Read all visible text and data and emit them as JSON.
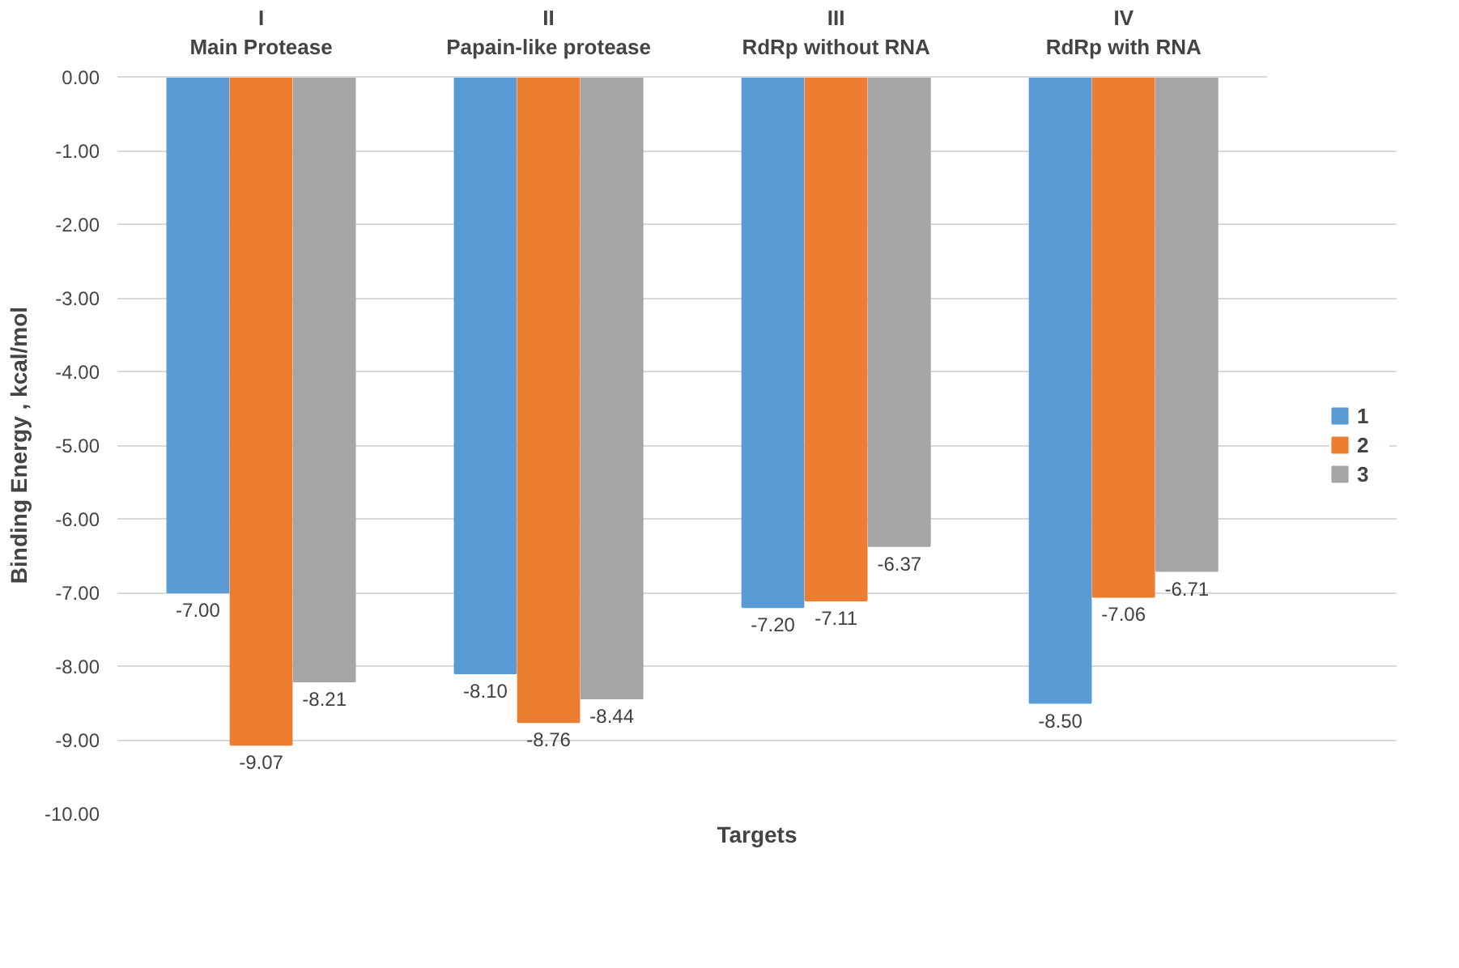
{
  "chart_data": {
    "type": "bar",
    "xlabel": "Targets",
    "ylabel": "Binding Energy , kcal/mol",
    "categories": [
      "I\nMain Protease",
      "II\nPapain-like protease",
      "III\nRdRp without RNA",
      "IV\nRdRp with RNA"
    ],
    "series": [
      {
        "name": "1",
        "color": "#5b9bd5",
        "values": [
          -7.0,
          -8.1,
          -7.2,
          -8.5
        ],
        "value_labels": [
          "-7.00",
          "-8.10",
          "-7.20",
          "-8.50"
        ]
      },
      {
        "name": "2",
        "color": "#ed7d31",
        "values": [
          -9.07,
          -8.76,
          -7.11,
          -7.06
        ],
        "value_labels": [
          "-9.07",
          "-8.76",
          "-7.11",
          "-7.06"
        ]
      },
      {
        "name": "3",
        "color": "#a5a5a5",
        "values": [
          -8.21,
          -8.44,
          -6.37,
          -6.71
        ],
        "value_labels": [
          "-8.21",
          "-8.44",
          "-6.37",
          "-6.71"
        ]
      }
    ],
    "ylim": [
      -10,
      0
    ],
    "yticks": [
      {
        "value": 0,
        "label": "0.00"
      },
      {
        "value": -1,
        "label": "-1.00"
      },
      {
        "value": -2,
        "label": "-2.00"
      },
      {
        "value": -3,
        "label": "-3.00"
      },
      {
        "value": -4,
        "label": "-4.00"
      },
      {
        "value": -5,
        "label": "-5.00"
      },
      {
        "value": -6,
        "label": "-6.00"
      },
      {
        "value": -7,
        "label": "-7.00"
      },
      {
        "value": -8,
        "label": "-8.00"
      },
      {
        "value": -9,
        "label": "-9.00"
      },
      {
        "value": -10,
        "label": "-10.00"
      }
    ],
    "grid": "y",
    "legend": "right"
  }
}
